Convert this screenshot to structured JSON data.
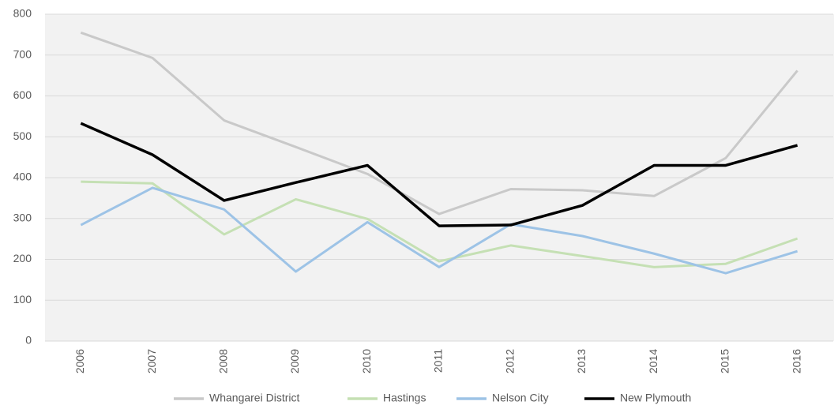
{
  "chart_data": {
    "type": "line",
    "categories": [
      "2006",
      "2007",
      "2008",
      "2009",
      "2010",
      "2011",
      "2012",
      "2013",
      "2014",
      "2015",
      "2016"
    ],
    "series": [
      {
        "name": "Whangarei District",
        "color": "#c9c9c9",
        "values": [
          755,
          693,
          540,
          475,
          409,
          311,
          372,
          369,
          355,
          448,
          662
        ]
      },
      {
        "name": "Hastings",
        "color": "#c5e0b4",
        "values": [
          390,
          386,
          261,
          347,
          299,
          195,
          234,
          208,
          181,
          189,
          251
        ]
      },
      {
        "name": "Nelson City",
        "color": "#9dc3e6",
        "values": [
          284,
          375,
          322,
          170,
          291,
          181,
          286,
          257,
          214,
          166,
          220
        ]
      },
      {
        "name": "New Plymouth",
        "color": "#000000",
        "values": [
          533,
          456,
          344,
          388,
          430,
          282,
          284,
          332,
          430,
          430,
          479
        ]
      }
    ],
    "ylim": [
      0,
      800
    ],
    "yticks": [
      0,
      100,
      200,
      300,
      400,
      500,
      600,
      700,
      800
    ],
    "grid": true,
    "legend": "bottom"
  }
}
